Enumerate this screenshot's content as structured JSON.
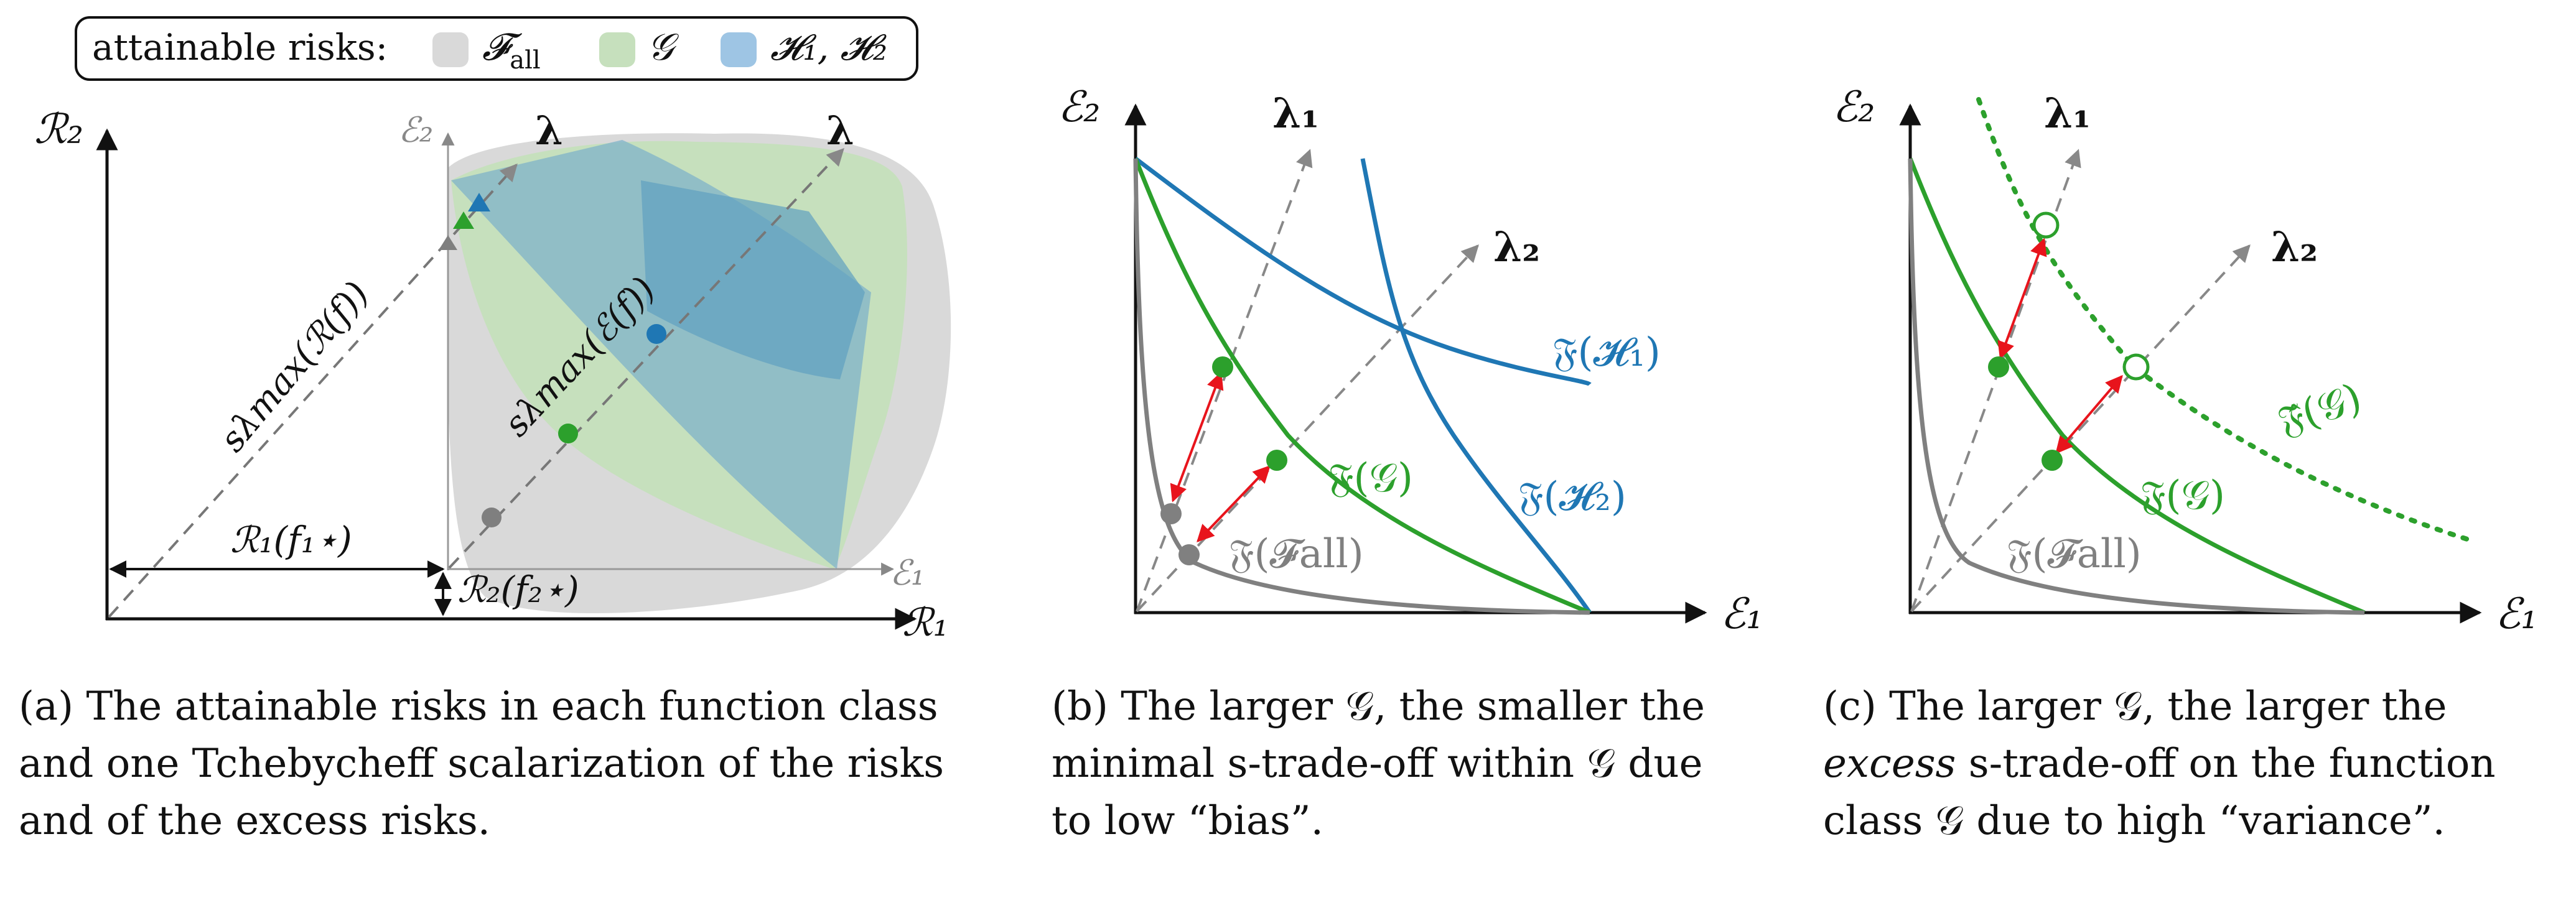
{
  "legend": {
    "title": "attainable risks:",
    "items": [
      {
        "label": "𝓕all",
        "base": "𝓕",
        "sub": "all",
        "color": "#d9d9d9"
      },
      {
        "label": "𝒢",
        "base": "𝒢",
        "sub": "",
        "color": "#c6e0bd"
      },
      {
        "label": "𝓗1, 𝓗2",
        "base": "𝓗₁, 𝓗₂",
        "sub": "",
        "color": "#9ec5e4"
      }
    ]
  },
  "colors": {
    "green": "#2ca02c",
    "blue": "#1f77b4",
    "gray": "#7f7f7f",
    "red": "#e8141c",
    "dark_gray": "#555555"
  },
  "panel_a": {
    "axis_x": "ℛ₁",
    "axis_y": "ℛ₂",
    "inner_axis_x": "ℰ₁",
    "inner_axis_y": "ℰ₂",
    "lambda_outer": "λ",
    "lambda_inner": "λ",
    "scal_risk": "sλmax(ℛ(f))",
    "scal_excess": "sλmax(ℰ(f))",
    "offset_x": "ℛ₁(f₁⋆)",
    "offset_y": "ℛ₂(f₂⋆)"
  },
  "panel_b": {
    "axis_x": "ℰ₁",
    "axis_y": "ℰ₂",
    "lambda1": "λ₁",
    "lambda2": "λ₂",
    "curve_H1": "𝔉(𝓗₁)",
    "curve_H2": "𝔉(𝓗₂)",
    "curve_G": "𝔉(𝒢)",
    "curve_Fall": "𝔉(𝓕all)"
  },
  "panel_c": {
    "axis_x": "ℰ₁",
    "axis_y": "ℰ₂",
    "lambda1": "λ₁",
    "lambda2": "λ₂",
    "curve_Ghat": "𝔉̂(𝒢)",
    "curve_G": "𝔉(𝒢)",
    "curve_Fall": "𝔉(𝓕all)"
  },
  "captions": {
    "a": {
      "line1": "(a) The attainable risks in each function class",
      "line2": "and one Tchebycheff scalarization of the risks",
      "line3": "and of the excess risks."
    },
    "b": {
      "line1": "(b) The larger 𝒢, the smaller the",
      "line2": "minimal s-trade-off within 𝒢 due",
      "line3": "to low “bias”."
    },
    "c": {
      "line1": "(c) The larger 𝒢, the larger the",
      "line2_em": "excess",
      "line2_rest": " s-trade-off on the function",
      "line3": "class 𝒢 due to high “variance”."
    }
  }
}
